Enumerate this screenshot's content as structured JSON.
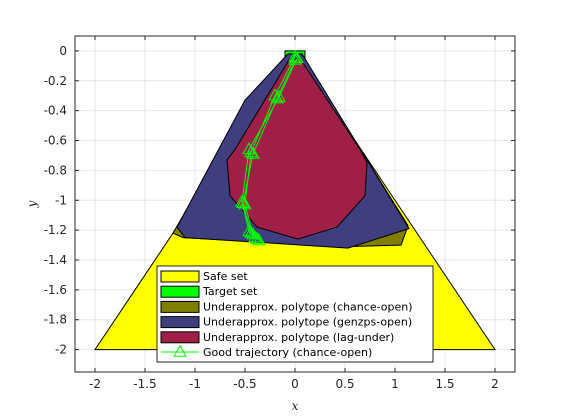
{
  "chart_data": {
    "type": "area",
    "title": "",
    "xlabel": "x",
    "ylabel": "y",
    "xlim": [
      -2.2,
      2.2
    ],
    "ylim": [
      -2.15,
      0.1
    ],
    "grid": true,
    "legend_position": "bottom-center",
    "x_ticks": [
      "-2",
      "-1.5",
      "-1",
      "-0.5",
      "0",
      "0.5",
      "1",
      "1.5",
      "2"
    ],
    "y_ticks": [
      "0",
      "-0.2",
      "-0.4",
      "-0.6",
      "-0.8",
      "-1",
      "-1.2",
      "-1.4",
      "-1.6",
      "-1.8",
      "-2"
    ],
    "x_tick_values": [
      -2,
      -1.5,
      -1,
      -0.5,
      0,
      0.5,
      1,
      1.5,
      2
    ],
    "y_tick_values": [
      0,
      -0.2,
      -0.4,
      -0.6,
      -0.8,
      -1,
      -1.2,
      -1.4,
      -1.6,
      -1.8,
      -2
    ],
    "series": [
      {
        "name": "Safe set",
        "kind": "polygon",
        "color": "#ffff00",
        "edge": "#000000",
        "points": [
          [
            -2,
            -2
          ],
          [
            0,
            0
          ],
          [
            2,
            -2
          ]
        ]
      },
      {
        "name": "Target set",
        "kind": "polygon",
        "color": "#00ff00",
        "edge": "#000000",
        "points": [
          [
            -0.1,
            0
          ],
          [
            0.1,
            0
          ],
          [
            0.1,
            -0.1
          ],
          [
            -0.1,
            -0.1
          ]
        ]
      },
      {
        "name": "Underapprox. polytope (chance-open)",
        "kind": "polygon",
        "color": "#808000",
        "edge": "#000000",
        "points": [
          [
            -0.06,
            -0.02
          ],
          [
            0.06,
            -0.02
          ],
          [
            1.13,
            -1.17
          ],
          [
            1.06,
            -1.3
          ],
          [
            0.53,
            -1.31
          ],
          [
            -0.28,
            -1.28
          ],
          [
            -1.12,
            -1.25
          ],
          [
            -1.22,
            -1.22
          ],
          [
            -0.48,
            -0.36
          ]
        ]
      },
      {
        "name": "Underapprox. polytope (genzps-open)",
        "kind": "polygon",
        "color": "#3f3f7f",
        "edge": "#000000",
        "points": [
          [
            -0.07,
            -0.02
          ],
          [
            0.07,
            -0.02
          ],
          [
            1.14,
            -1.19
          ],
          [
            0.53,
            -1.32
          ],
          [
            -1.1,
            -1.25
          ],
          [
            -1.18,
            -1.18
          ],
          [
            -0.5,
            -0.33
          ]
        ]
      },
      {
        "name": "Underapprox. polytope (lag-under)",
        "kind": "polygon",
        "color": "#a01f46",
        "edge": "#000000",
        "points": [
          [
            -0.05,
            -0.05
          ],
          [
            0.05,
            -0.05
          ],
          [
            0.65,
            -0.66
          ],
          [
            0.72,
            -0.75
          ],
          [
            0.7,
            -0.97
          ],
          [
            0.42,
            -1.18
          ],
          [
            0.03,
            -1.26
          ],
          [
            -0.38,
            -1.18
          ],
          [
            -0.65,
            -0.97
          ],
          [
            -0.68,
            -0.73
          ],
          [
            -0.6,
            -0.66
          ]
        ]
      },
      {
        "name": "Good trajectory (chance-open)",
        "kind": "trajectories",
        "color": "#00ff00",
        "marker": "triangle",
        "lines": [
          [
            [
              0,
              -0.04
            ],
            [
              -0.2,
              -0.3
            ],
            [
              -0.44,
              -0.68
            ],
            [
              -0.5,
              -1.03
            ],
            [
              -0.42,
              -1.23
            ],
            [
              -0.36,
              -1.27
            ]
          ],
          [
            [
              0,
              -0.06
            ],
            [
              -0.18,
              -0.32
            ],
            [
              -0.42,
              -0.69
            ],
            [
              -0.52,
              -1.02
            ],
            [
              -0.44,
              -1.22
            ],
            [
              -0.38,
              -1.26
            ]
          ],
          [
            [
              0.02,
              -0.05
            ],
            [
              -0.16,
              -0.31
            ],
            [
              -0.46,
              -0.66
            ],
            [
              -0.53,
              -1.01
            ],
            [
              -0.46,
              -1.21
            ],
            [
              -0.4,
              -1.25
            ]
          ]
        ]
      }
    ]
  }
}
